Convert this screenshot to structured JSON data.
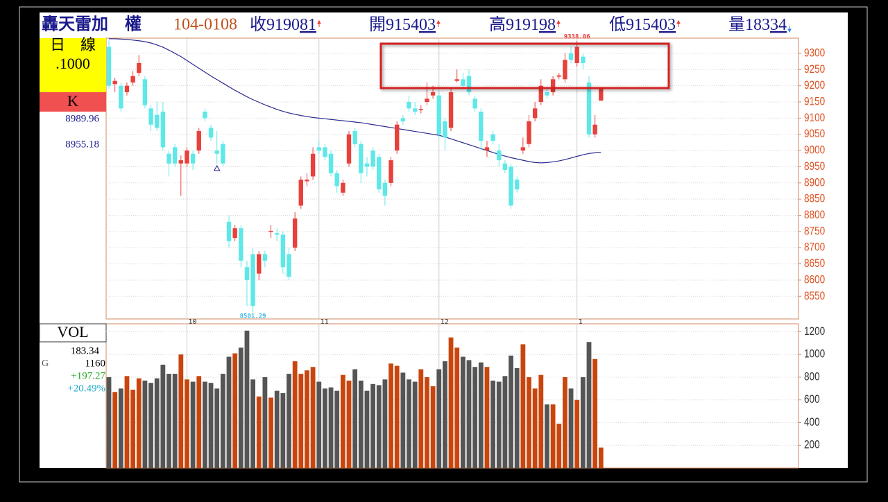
{
  "header": {
    "name": "轟天雷加　權",
    "date": "104-0108",
    "quotes": [
      {
        "label": "收",
        "int": "9190",
        "dec": "81"
      },
      {
        "label": "開",
        "int": "9154",
        "dec": "03"
      },
      {
        "label": "高",
        "int": "9191",
        "dec": "98"
      },
      {
        "label": "低",
        "int": "9154",
        "dec": "03"
      },
      {
        "label": "量",
        "int": "183",
        "dec": "34"
      }
    ]
  },
  "side_panel": {
    "period": "日　線",
    "scale": ".1000",
    "kind": "K",
    "value_a": "8989.96",
    "value_b": "8955.18",
    "vol_title": "VOL",
    "vol_value": "183.34",
    "vol_g": "G",
    "vol_g_value": "1160",
    "vol_change": "+197.27",
    "vol_change_pct": "+20.49%"
  },
  "chart_data": [
    {
      "type": "candlestick",
      "categories": [
        null,
        null,
        null,
        null,
        null,
        null,
        null,
        null,
        null,
        null,
        null,
        null,
        null,
        "10",
        null,
        null,
        null,
        null,
        null,
        null,
        null,
        null,
        null,
        null,
        null,
        null,
        null,
        null,
        null,
        null,
        null,
        null,
        null,
        null,
        null,
        "11",
        null,
        null,
        null,
        null,
        null,
        null,
        null,
        null,
        null,
        null,
        null,
        null,
        null,
        null,
        null,
        null,
        null,
        null,
        null,
        "12",
        null,
        null,
        null,
        null,
        null,
        null,
        null,
        null,
        null,
        null,
        null,
        null,
        null,
        null,
        null,
        null,
        null,
        null,
        null,
        null,
        null,
        null,
        "1",
        null,
        null,
        null,
        null
      ],
      "open": [
        9320,
        9205,
        9200,
        9180,
        9210,
        9240,
        9220,
        9130,
        9110,
        9120,
        8990,
        9010,
        8960,
        8960,
        8990,
        9000,
        9120,
        9070,
        9000,
        9020,
        8780,
        8730,
        8760,
        8640,
        8680,
        8620,
        8680,
        8750,
        8745,
        8740,
        8680,
        8700,
        8830,
        8905,
        8920,
        9010,
        9010,
        8990,
        8930,
        8870,
        8960,
        9060,
        9020,
        8960,
        9000,
        8980,
        8900,
        8900,
        9000,
        9100,
        9150,
        9130,
        9125,
        9150,
        9170,
        9170,
        9090,
        9070,
        9215,
        9220,
        9230,
        9160,
        9120,
        9000,
        9050,
        9000,
        8960,
        8950,
        8910,
        9000,
        9020,
        9100,
        9150,
        9180,
        9180,
        9228,
        9220,
        9300,
        9270,
        9290,
        9210,
        9050,
        9154
      ],
      "high": [
        9340,
        9225,
        9210,
        9210,
        9245,
        9295,
        9230,
        9140,
        9150,
        9150,
        9000,
        9020,
        8985,
        9010,
        9000,
        9070,
        9130,
        9080,
        9060,
        9030,
        8800,
        8770,
        8770,
        8660,
        8700,
        8690,
        8690,
        8770,
        8760,
        8750,
        8700,
        8810,
        8920,
        8930,
        9010,
        9030,
        9020,
        9000,
        8940,
        8910,
        9060,
        9070,
        9030,
        8980,
        9010,
        8990,
        8910,
        8980,
        9090,
        9110,
        9170,
        9150,
        9140,
        9210,
        9200,
        9180,
        9100,
        9190,
        9250,
        9240,
        9250,
        9170,
        9130,
        9030,
        9060,
        9020,
        8970,
        8960,
        8920,
        9040,
        9110,
        9150,
        9220,
        9190,
        9230,
        9240,
        9300,
        9320,
        9338,
        9300,
        9230,
        9110,
        9192
      ],
      "low": [
        9190,
        9180,
        9120,
        9170,
        9200,
        9230,
        9130,
        9060,
        9060,
        9000,
        8920,
        8950,
        8860,
        8950,
        8940,
        8990,
        9090,
        9030,
        8960,
        8950,
        8700,
        8720,
        8640,
        8520,
        8501,
        8600,
        8640,
        8730,
        8720,
        8620,
        8600,
        8690,
        8820,
        8890,
        8910,
        8990,
        8970,
        8920,
        8870,
        8860,
        8950,
        9010,
        8900,
        8920,
        8940,
        8870,
        8830,
        8890,
        8990,
        9080,
        9120,
        9110,
        9115,
        9140,
        9160,
        9040,
        9000,
        9060,
        9210,
        9190,
        9170,
        9120,
        9000,
        8980,
        9020,
        8950,
        8930,
        8820,
        8870,
        8990,
        9010,
        9090,
        9140,
        9160,
        9170,
        9220,
        9210,
        9270,
        9260,
        9250,
        9040,
        9040,
        9154
      ],
      "close": [
        9200,
        9215,
        9130,
        9200,
        9230,
        9270,
        9140,
        9080,
        9070,
        9010,
        8960,
        8960,
        8970,
        9000,
        8960,
        9060,
        9100,
        9040,
        8990,
        8960,
        8720,
        8760,
        8660,
        8600,
        8520,
        8680,
        8660,
        8752,
        8740,
        8640,
        8610,
        8790,
        8910,
        8910,
        8990,
        9000,
        8980,
        8930,
        8890,
        8900,
        9050,
        9020,
        8930,
        8950,
        8950,
        8880,
        8860,
        8970,
        9080,
        9090,
        9130,
        9120,
        9128,
        9160,
        9180,
        9050,
        9040,
        9180,
        9220,
        9200,
        9180,
        9130,
        9030,
        9010,
        9030,
        8970,
        8940,
        8830,
        8880,
        9010,
        9090,
        9130,
        9200,
        9170,
        9220,
        9232,
        9280,
        9280,
        9320,
        9270,
        9050,
        9080,
        9191
      ],
      "up_color": "#e8403a",
      "down_color": "#5ee8e8",
      "series": [
        {
          "color": "#2a2a90",
          "values": [
            9345,
            9345,
            9344,
            9343,
            9341,
            9339,
            9336,
            9332,
            9326,
            9319,
            9310,
            9300,
            9290,
            9278,
            9266,
            9254,
            9242,
            9230,
            9219,
            9208,
            9197,
            9186,
            9176,
            9166,
            9157,
            9149,
            9141,
            9134,
            9127,
            9121,
            9116,
            9112,
            9108,
            9105,
            9102,
            9100,
            9098,
            9096,
            9094,
            9092,
            9090,
            9088,
            9086,
            9083,
            9080,
            9077,
            9074,
            9071,
            9068,
            9065,
            9062,
            9059,
            9056,
            9053,
            9050,
            9047,
            9042,
            9036,
            9030,
            9024,
            9018,
            9012,
            9006,
            9000,
            8994,
            8988,
            8983,
            8978,
            8974,
            8970,
            8966,
            8963,
            8962,
            8963,
            8965,
            8968,
            8972,
            8977,
            8982,
            8987,
            8991,
            8993,
            8995
          ]
        }
      ],
      "annotations": [
        {
          "text": "9338.06",
          "index": 78,
          "color": "#e8403a"
        },
        {
          "text": "8501.29",
          "index": 24,
          "color": "#3ab8e8"
        }
      ],
      "ylim": [
        8480,
        9347
      ],
      "yticks": [
        8550,
        8600,
        8650,
        8700,
        8750,
        8800,
        8850,
        8900,
        8950,
        9000,
        9050,
        9100,
        9150,
        9200,
        9250,
        9300
      ],
      "tick_color": "#e05020",
      "grid": true
    },
    {
      "type": "bar",
      "values": [
        800,
        670,
        700,
        810,
        690,
        790,
        770,
        750,
        790,
        910,
        830,
        830,
        1000,
        780,
        760,
        810,
        760,
        750,
        700,
        830,
        980,
        1010,
        1060,
        1210,
        780,
        630,
        800,
        620,
        680,
        660,
        830,
        940,
        830,
        860,
        890,
        760,
        700,
        710,
        680,
        820,
        770,
        870,
        770,
        680,
        740,
        730,
        780,
        920,
        900,
        840,
        780,
        760,
        870,
        800,
        720,
        870,
        940,
        1150,
        1060,
        980,
        950,
        890,
        930,
        890,
        770,
        760,
        810,
        990,
        880,
        1090,
        800,
        700,
        820,
        560,
        560,
        390,
        800,
        700,
        600,
        800,
        1110,
        960,
        180
      ],
      "up_color": "#c8460e",
      "down_color": "#555555",
      "ylim": [
        0,
        1270
      ],
      "yticks": [
        200,
        400,
        600,
        800,
        1000,
        1200
      ],
      "tick_color": "#333333",
      "grid": true
    }
  ]
}
